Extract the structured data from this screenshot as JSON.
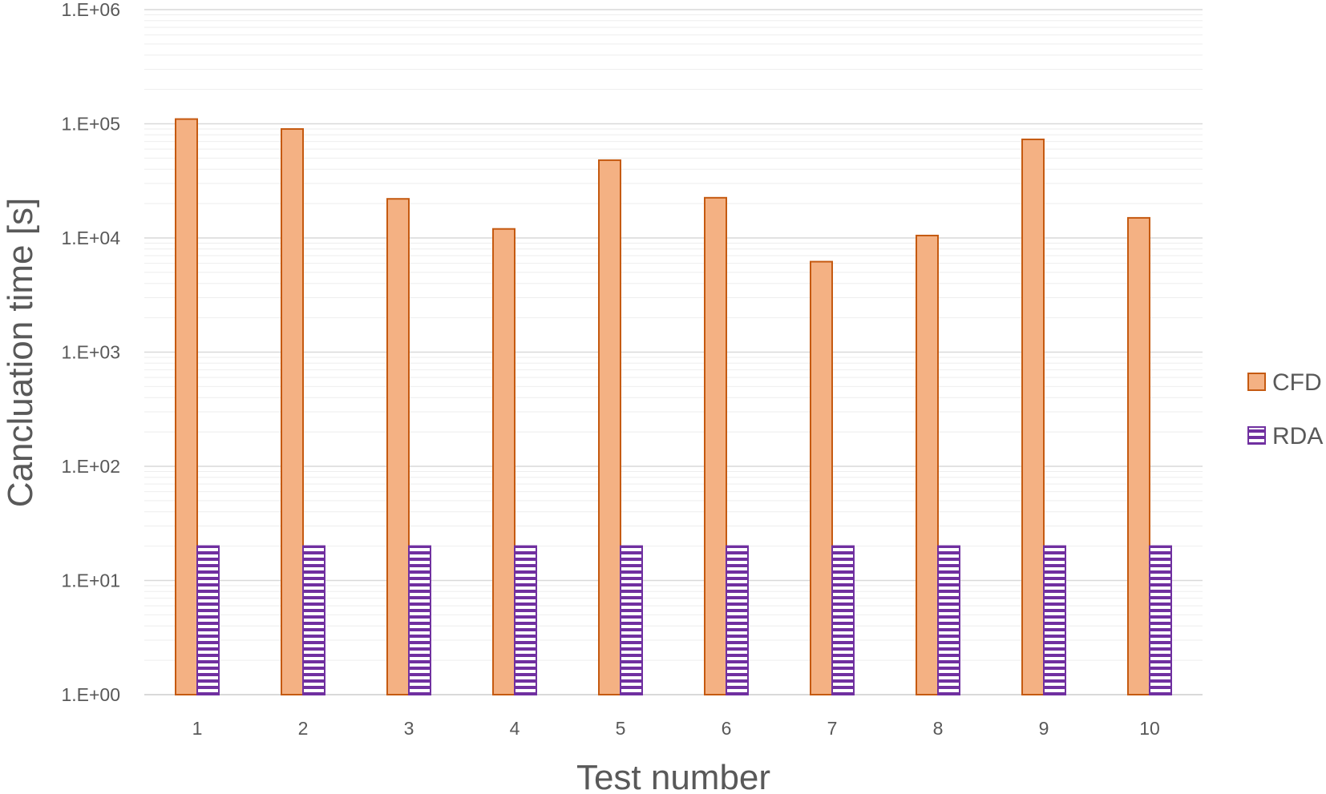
{
  "chart_data": {
    "type": "bar",
    "scale": "log",
    "categories": [
      "1",
      "2",
      "3",
      "4",
      "5",
      "6",
      "7",
      "8",
      "9",
      "10"
    ],
    "series": [
      {
        "name": "CFD",
        "values": [
          110000,
          90000,
          22000,
          12000,
          48000,
          22500,
          6200,
          10500,
          73000,
          15000
        ]
      },
      {
        "name": "RDA",
        "values": [
          20,
          20,
          20,
          20,
          20,
          20,
          20,
          20,
          20,
          20
        ]
      }
    ],
    "xlabel": "Test number",
    "ylabel": "Cancluation time [s]",
    "y_tick_labels": [
      "1.E+00",
      "1.E+01",
      "1.E+02",
      "1.E+03",
      "1.E+04",
      "1.E+05",
      "1.E+06"
    ],
    "ylim": [
      1,
      1000000
    ],
    "grid": true,
    "legend": "right",
    "colors": {
      "cfd_fill": "#F4B183",
      "cfd_stroke": "#C55A11",
      "rda_stroke": "#7030A0",
      "grid_major": "#D9D9D9",
      "grid_minor": "#EEEEEE"
    }
  }
}
